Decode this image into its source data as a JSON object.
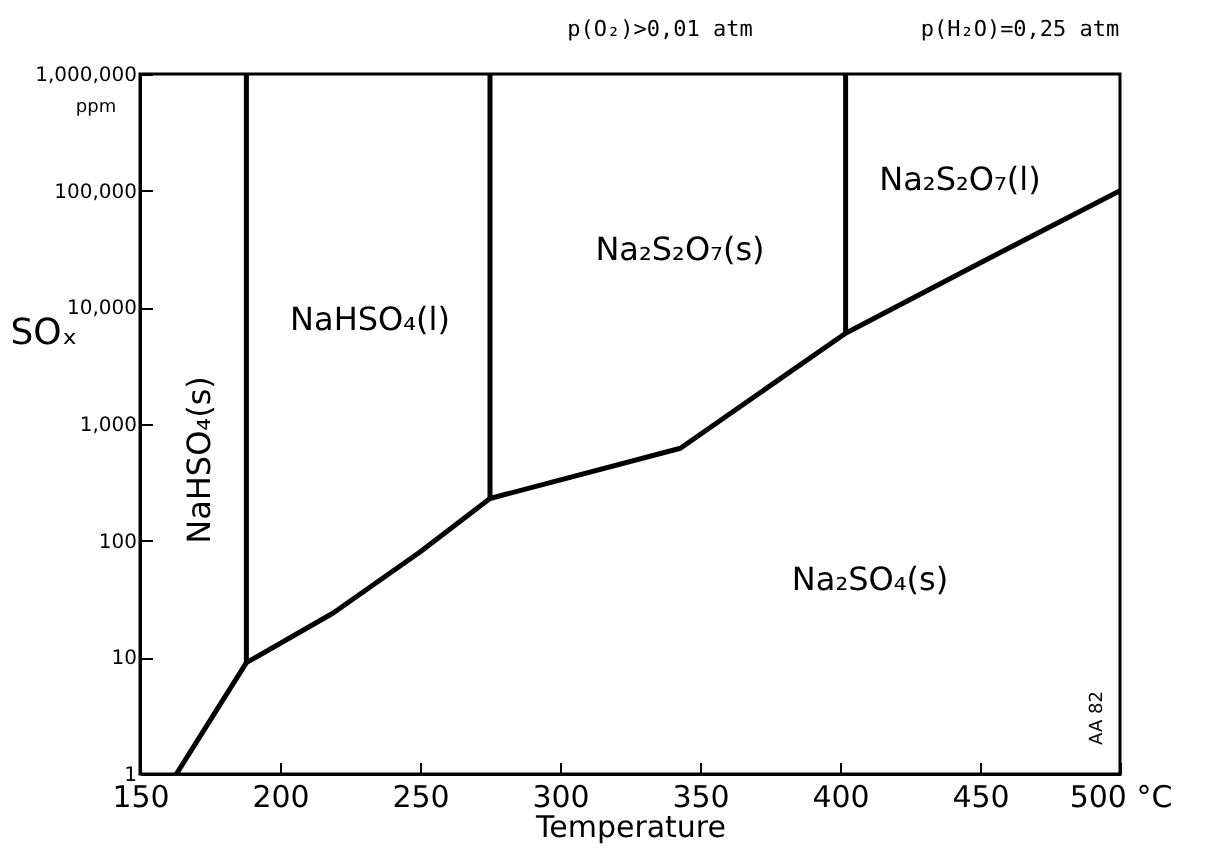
{
  "chart_data": {
    "type": "line",
    "xlabel": "Temperature",
    "ylabel": "SOₓ",
    "log": "y",
    "xlim": [
      150,
      500
    ],
    "xticks": [
      150,
      200,
      250,
      300,
      350,
      400,
      450,
      {
        "value": 500,
        "label": "500 °C"
      }
    ],
    "ylim": [
      1,
      1000000
    ],
    "yticks": [
      1,
      10,
      100,
      {
        "value": 1000,
        "label": "1,000"
      },
      {
        "value": 10000,
        "label": "10,000"
      },
      {
        "value": 100000,
        "label": "100,000"
      },
      {
        "value": 1000000,
        "label": "1,000,000"
      }
    ],
    "grid": false,
    "marker": "none",
    "line_style": "solid",
    "series": [
      {
        "color": "#000000",
        "x": [
          163,
          188,
          219,
          250,
          275,
          343,
          402,
          450,
          500
        ],
        "values": [
          1,
          9,
          24,
          80,
          230,
          620,
          6000,
          24000,
          100000
        ]
      },
      {
        "color": "#000000",
        "x": [
          188,
          188
        ],
        "values": [
          9,
          1000000
        ]
      },
      {
        "color": "#000000",
        "x": [
          275,
          275
        ],
        "values": [
          230,
          1000000
        ]
      },
      {
        "color": "#000000",
        "x": [
          402,
          402
        ],
        "values": [
          6000,
          1000000
        ]
      }
    ],
    "annotations": [
      "NaHSO₄(s)",
      "NaHSO₄(l)",
      "Na₂S₂O₇(s)",
      "Na₂S₂O₇(l)",
      "Na₂SO₄(s)",
      "p(O₂)>0,01 atm",
      "p(H₂O)=0,25 atm",
      "ppm",
      "AA 82"
    ]
  }
}
